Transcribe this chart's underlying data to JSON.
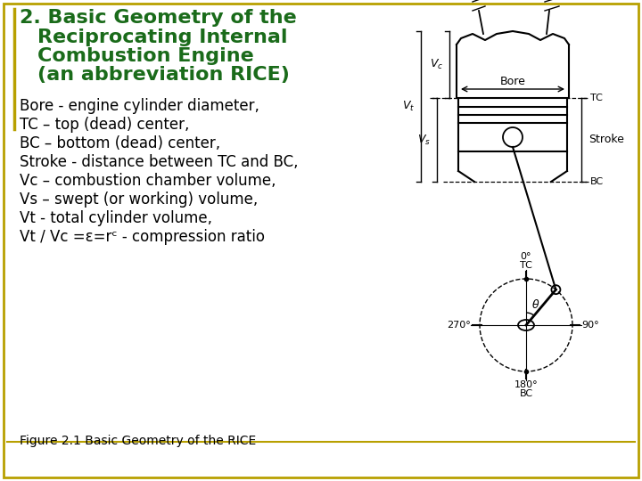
{
  "title_line1": "2. Basic Geometry of the",
  "title_line2": "Reciprocating Internal",
  "title_line3": "Combustion Engine",
  "title_line4": "(an abbreviation RICE)",
  "title_color": "#1a6b1a",
  "title_fontsize": 16,
  "body_lines": [
    "Bore - engine cylinder diameter,",
    "TC – top (dead) center,",
    "BC – bottom (dead) center,",
    "Stroke - distance between TC and BC,",
    "Vc – combustion chamber volume,",
    "Vs – swept (or working) volume,",
    "Vt - total cylinder volume,",
    "Vt / Vc =ε=rᶜ - compression ratio"
  ],
  "body_fontsize": 12,
  "caption": "Figure 2.1 Basic Geometry of the RICE",
  "caption_fontsize": 10,
  "bg_color": "#ffffff",
  "border_color": "#b8a000"
}
